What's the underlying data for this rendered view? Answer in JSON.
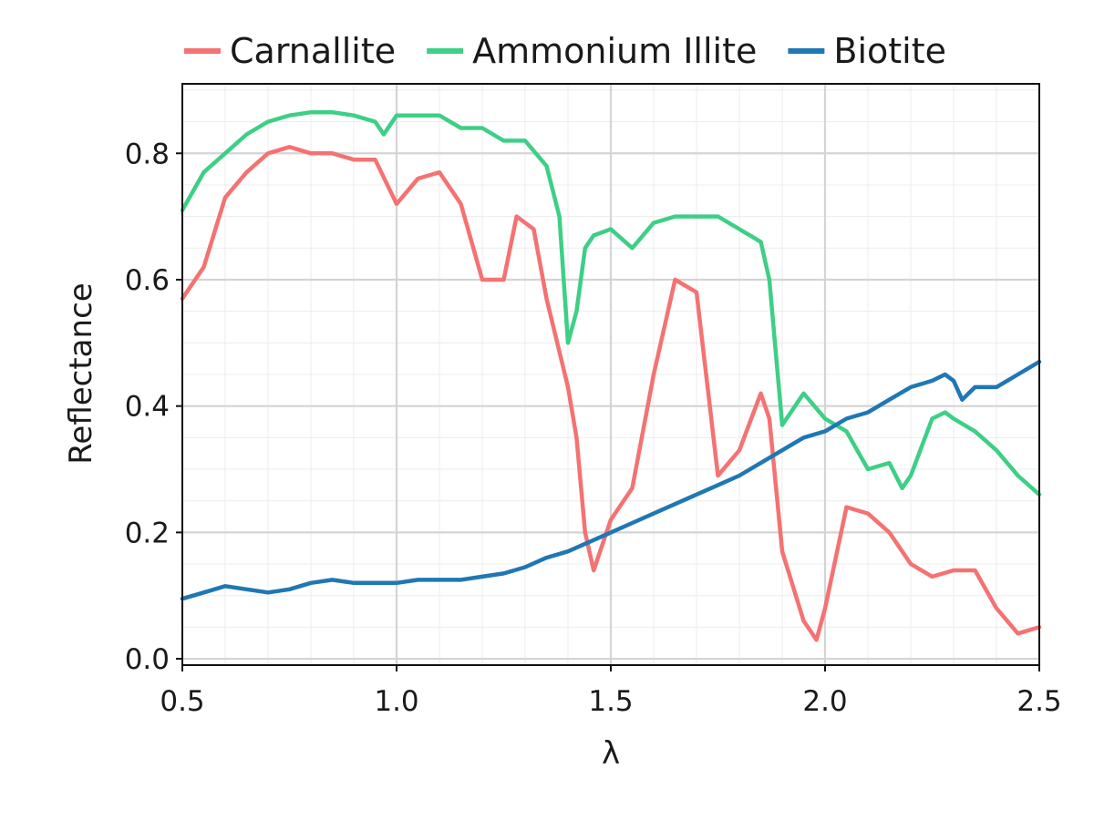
{
  "chart_data": {
    "type": "line",
    "title": "",
    "xlabel": "λ",
    "ylabel": "Reflectance",
    "xlim": [
      0.5,
      2.5
    ],
    "ylim": [
      -0.01,
      0.91
    ],
    "xticks": [
      0.5,
      1.0,
      1.5,
      2.0,
      2.5
    ],
    "xtick_labels": [
      "0.5",
      "1.0",
      "1.5",
      "2.0",
      "2.5"
    ],
    "yticks": [
      0.0,
      0.2,
      0.4,
      0.6,
      0.8
    ],
    "ytick_labels": [
      "0.0",
      "0.2",
      "0.4",
      "0.6",
      "0.8"
    ],
    "grid": true,
    "minor_grid": true,
    "legend_position": "top",
    "series": [
      {
        "name": "Carnallite",
        "color": "#f47272",
        "x": [
          0.5,
          0.55,
          0.6,
          0.65,
          0.7,
          0.75,
          0.8,
          0.85,
          0.9,
          0.95,
          1.0,
          1.05,
          1.1,
          1.15,
          1.2,
          1.25,
          1.28,
          1.32,
          1.35,
          1.4,
          1.42,
          1.44,
          1.46,
          1.5,
          1.55,
          1.6,
          1.65,
          1.7,
          1.75,
          1.8,
          1.85,
          1.87,
          1.9,
          1.95,
          1.98,
          2.0,
          2.05,
          2.1,
          2.15,
          2.2,
          2.25,
          2.3,
          2.35,
          2.4,
          2.45,
          2.5
        ],
        "y": [
          0.57,
          0.62,
          0.73,
          0.77,
          0.8,
          0.81,
          0.8,
          0.8,
          0.79,
          0.79,
          0.72,
          0.76,
          0.77,
          0.72,
          0.6,
          0.6,
          0.7,
          0.68,
          0.57,
          0.43,
          0.35,
          0.2,
          0.14,
          0.22,
          0.27,
          0.45,
          0.6,
          0.58,
          0.29,
          0.33,
          0.42,
          0.38,
          0.17,
          0.06,
          0.03,
          0.08,
          0.24,
          0.23,
          0.2,
          0.15,
          0.13,
          0.14,
          0.14,
          0.08,
          0.04,
          0.05
        ]
      },
      {
        "name": "Ammonium Illite",
        "color": "#3ecf86",
        "x": [
          0.5,
          0.55,
          0.6,
          0.65,
          0.7,
          0.75,
          0.8,
          0.85,
          0.9,
          0.95,
          0.97,
          1.0,
          1.05,
          1.1,
          1.15,
          1.2,
          1.25,
          1.3,
          1.35,
          1.38,
          1.4,
          1.42,
          1.44,
          1.46,
          1.5,
          1.55,
          1.6,
          1.65,
          1.7,
          1.75,
          1.8,
          1.85,
          1.87,
          1.9,
          1.92,
          1.95,
          2.0,
          2.05,
          2.1,
          2.15,
          2.18,
          2.2,
          2.25,
          2.28,
          2.3,
          2.35,
          2.4,
          2.45,
          2.5
        ],
        "y": [
          0.71,
          0.77,
          0.8,
          0.83,
          0.85,
          0.86,
          0.865,
          0.865,
          0.86,
          0.85,
          0.83,
          0.86,
          0.86,
          0.86,
          0.84,
          0.84,
          0.82,
          0.82,
          0.78,
          0.7,
          0.5,
          0.55,
          0.65,
          0.67,
          0.68,
          0.65,
          0.69,
          0.7,
          0.7,
          0.7,
          0.68,
          0.66,
          0.6,
          0.37,
          0.39,
          0.42,
          0.38,
          0.36,
          0.3,
          0.31,
          0.27,
          0.29,
          0.38,
          0.39,
          0.38,
          0.36,
          0.33,
          0.29,
          0.26
        ]
      },
      {
        "name": "Biotite",
        "color": "#1f77b4",
        "x": [
          0.5,
          0.55,
          0.6,
          0.65,
          0.7,
          0.75,
          0.8,
          0.85,
          0.9,
          0.95,
          1.0,
          1.05,
          1.1,
          1.15,
          1.2,
          1.25,
          1.3,
          1.35,
          1.4,
          1.45,
          1.5,
          1.55,
          1.6,
          1.65,
          1.7,
          1.75,
          1.8,
          1.85,
          1.9,
          1.95,
          2.0,
          2.05,
          2.1,
          2.15,
          2.2,
          2.25,
          2.28,
          2.3,
          2.32,
          2.35,
          2.4,
          2.45,
          2.5
        ],
        "y": [
          0.095,
          0.105,
          0.115,
          0.11,
          0.105,
          0.11,
          0.12,
          0.125,
          0.12,
          0.12,
          0.12,
          0.125,
          0.125,
          0.125,
          0.13,
          0.135,
          0.145,
          0.16,
          0.17,
          0.185,
          0.2,
          0.215,
          0.23,
          0.245,
          0.26,
          0.275,
          0.29,
          0.31,
          0.33,
          0.35,
          0.36,
          0.38,
          0.39,
          0.41,
          0.43,
          0.44,
          0.45,
          0.44,
          0.41,
          0.43,
          0.43,
          0.45,
          0.47
        ]
      }
    ]
  }
}
